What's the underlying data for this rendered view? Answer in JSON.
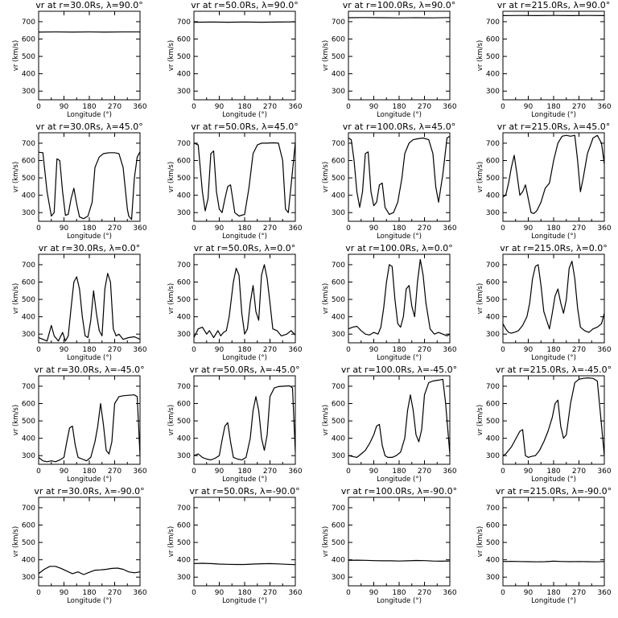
{
  "chart_data": {
    "type": "line",
    "layout": "grid",
    "x_label": "Longitude (°)",
    "y_label": "vr (km/s)",
    "x_ticks": [
      0,
      90,
      180,
      270,
      360
    ],
    "x_range": [
      0,
      360
    ],
    "panels": [
      {
        "title": "vr at r=30.0Rs, λ=90.0°",
        "y_ticks": [
          300,
          400,
          500,
          600,
          700
        ],
        "y_range": [
          250,
          760
        ],
        "x": [
          0,
          60,
          120,
          180,
          240,
          300,
          360
        ],
        "y": [
          640,
          641,
          640,
          641,
          640,
          641,
          641
        ]
      },
      {
        "title": "vr at r=50.0Rs, λ=90.0°",
        "y_ticks": [
          300,
          400,
          500,
          600,
          700
        ],
        "y_range": [
          250,
          760
        ],
        "x": [
          0,
          60,
          120,
          180,
          240,
          300,
          360
        ],
        "y": [
          697,
          698,
          697,
          698,
          697,
          698,
          699
        ]
      },
      {
        "title": "vr at r=100.0Rs, λ=90.0°",
        "y_ticks": [
          300,
          400,
          500,
          600,
          700
        ],
        "y_range": [
          250,
          760
        ],
        "x": [
          0,
          60,
          120,
          180,
          240,
          300,
          360
        ],
        "y": [
          723,
          724,
          723,
          722,
          723,
          722,
          724
        ]
      },
      {
        "title": "vr at r=215.0Rs, λ=90.0°",
        "y_ticks": [
          300,
          400,
          500,
          600,
          700
        ],
        "y_range": [
          250,
          760
        ],
        "x": [
          0,
          60,
          120,
          180,
          240,
          300,
          360
        ],
        "y": [
          735,
          736,
          735,
          736,
          735,
          736,
          735
        ]
      },
      {
        "title": "vr at r=30.0Rs, λ=45.0°",
        "y_ticks": [
          300,
          400,
          500,
          600,
          700
        ],
        "y_range": [
          250,
          760
        ],
        "x": [
          0,
          15,
          30,
          45,
          55,
          65,
          75,
          85,
          95,
          105,
          115,
          125,
          135,
          145,
          160,
          175,
          190,
          200,
          215,
          230,
          250,
          270,
          285,
          300,
          315,
          320,
          330,
          340,
          350,
          360
        ],
        "y": [
          648,
          645,
          420,
          280,
          300,
          610,
          600,
          420,
          285,
          290,
          380,
          440,
          350,
          275,
          265,
          280,
          360,
          560,
          620,
          640,
          645,
          645,
          640,
          560,
          320,
          280,
          260,
          500,
          620,
          650
        ]
      },
      {
        "title": "vr at r=50.0Rs, λ=45.0°",
        "y_ticks": [
          300,
          400,
          500,
          600,
          700
        ],
        "y_range": [
          250,
          760
        ],
        "x": [
          0,
          15,
          30,
          40,
          50,
          60,
          70,
          80,
          90,
          100,
          110,
          120,
          130,
          145,
          160,
          180,
          195,
          210,
          225,
          240,
          260,
          280,
          300,
          315,
          325,
          335,
          345,
          360
        ],
        "y": [
          700,
          690,
          420,
          310,
          380,
          640,
          655,
          420,
          320,
          300,
          380,
          450,
          460,
          300,
          280,
          290,
          440,
          640,
          690,
          700,
          700,
          702,
          700,
          600,
          320,
          300,
          460,
          705
        ]
      },
      {
        "title": "vr at r=100.0Rs, λ=45.0°",
        "y_ticks": [
          300,
          400,
          500,
          600,
          700
        ],
        "y_range": [
          250,
          760
        ],
        "x": [
          0,
          10,
          20,
          30,
          40,
          50,
          60,
          70,
          80,
          90,
          100,
          110,
          120,
          130,
          145,
          160,
          175,
          190,
          200,
          215,
          230,
          245,
          265,
          285,
          300,
          310,
          320,
          335,
          350,
          360
        ],
        "y": [
          730,
          720,
          600,
          420,
          330,
          420,
          640,
          650,
          420,
          340,
          360,
          460,
          470,
          330,
          290,
          300,
          360,
          500,
          640,
          700,
          720,
          725,
          730,
          720,
          640,
          450,
          360,
          520,
          730,
          740
        ]
      },
      {
        "title": "vr at r=215.0Rs, λ=45.0°",
        "y_ticks": [
          300,
          400,
          500,
          600,
          700
        ],
        "y_range": [
          250,
          760
        ],
        "x": [
          0,
          10,
          20,
          30,
          40,
          50,
          60,
          70,
          80,
          90,
          100,
          110,
          120,
          135,
          150,
          165,
          180,
          195,
          210,
          225,
          240,
          255,
          265,
          275,
          285,
          300,
          320,
          335,
          350,
          360
        ],
        "y": [
          390,
          400,
          470,
          560,
          630,
          520,
          400,
          420,
          460,
          380,
          300,
          295,
          310,
          360,
          440,
          470,
          600,
          700,
          740,
          745,
          740,
          745,
          600,
          420,
          500,
          640,
          730,
          745,
          700,
          580
        ]
      },
      {
        "title": "vr at r=30.0Rs, λ=0.0°",
        "y_ticks": [
          300,
          400,
          500,
          600,
          700
        ],
        "y_range": [
          250,
          760
        ],
        "x": [
          0,
          15,
          30,
          45,
          55,
          70,
          85,
          95,
          105,
          115,
          125,
          135,
          145,
          155,
          165,
          175,
          185,
          195,
          205,
          215,
          225,
          235,
          245,
          255,
          265,
          275,
          285,
          300,
          320,
          340,
          360
        ],
        "y": [
          280,
          270,
          260,
          350,
          290,
          260,
          310,
          260,
          290,
          450,
          600,
          630,
          560,
          400,
          290,
          280,
          380,
          550,
          420,
          320,
          290,
          560,
          650,
          600,
          330,
          290,
          300,
          270,
          280,
          285,
          270
        ]
      },
      {
        "title": "vr at r=50.0Rs, λ=0.0°",
        "y_ticks": [
          300,
          400,
          500,
          600,
          700
        ],
        "y_range": [
          250,
          760
        ],
        "x": [
          0,
          15,
          30,
          45,
          55,
          70,
          85,
          95,
          105,
          115,
          125,
          140,
          150,
          160,
          170,
          180,
          190,
          200,
          210,
          220,
          230,
          240,
          250,
          260,
          270,
          280,
          295,
          310,
          330,
          345,
          360
        ],
        "y": [
          280,
          330,
          340,
          300,
          320,
          280,
          320,
          290,
          310,
          320,
          400,
          600,
          680,
          640,
          420,
          300,
          330,
          480,
          580,
          430,
          380,
          640,
          700,
          620,
          480,
          330,
          320,
          290,
          300,
          320,
          295
        ]
      },
      {
        "title": "vr at r=100.0Rs, λ=0.0°",
        "y_ticks": [
          300,
          400,
          500,
          600,
          700
        ],
        "y_range": [
          250,
          760
        ],
        "x": [
          0,
          15,
          30,
          45,
          60,
          75,
          90,
          105,
          115,
          125,
          135,
          145,
          155,
          165,
          175,
          185,
          195,
          205,
          215,
          225,
          235,
          245,
          255,
          265,
          275,
          290,
          305,
          320,
          335,
          350,
          360
        ],
        "y": [
          330,
          340,
          345,
          320,
          300,
          295,
          310,
          300,
          340,
          450,
          600,
          700,
          690,
          500,
          360,
          340,
          400,
          560,
          580,
          460,
          400,
          600,
          730,
          640,
          480,
          330,
          300,
          310,
          300,
          290,
          300
        ]
      },
      {
        "title": "vr at r=215.0Rs, λ=0.0°",
        "y_ticks": [
          300,
          400,
          500,
          600,
          700
        ],
        "y_range": [
          250,
          760
        ],
        "x": [
          0,
          10,
          20,
          30,
          40,
          55,
          70,
          85,
          95,
          105,
          115,
          125,
          135,
          145,
          155,
          165,
          175,
          185,
          195,
          205,
          215,
          225,
          235,
          245,
          255,
          265,
          275,
          290,
          305,
          320,
          335,
          350,
          360
        ],
        "y": [
          360,
          330,
          310,
          305,
          310,
          320,
          350,
          400,
          480,
          620,
          690,
          700,
          580,
          430,
          380,
          330,
          420,
          520,
          560,
          480,
          420,
          500,
          680,
          720,
          620,
          450,
          340,
          320,
          310,
          330,
          340,
          360,
          420
        ]
      },
      {
        "title": "vr at r=30.0Rs, λ=-45.0°",
        "y_ticks": [
          300,
          400,
          500,
          600,
          700
        ],
        "y_range": [
          250,
          760
        ],
        "x": [
          0,
          15,
          30,
          45,
          60,
          75,
          90,
          100,
          110,
          120,
          130,
          140,
          155,
          170,
          185,
          200,
          210,
          220,
          230,
          240,
          250,
          260,
          270,
          285,
          300,
          320,
          340,
          350,
          360
        ],
        "y": [
          290,
          270,
          265,
          270,
          265,
          275,
          290,
          380,
          460,
          470,
          360,
          290,
          280,
          270,
          290,
          380,
          470,
          600,
          480,
          330,
          310,
          380,
          600,
          640,
          645,
          648,
          650,
          640,
          300
        ]
      },
      {
        "title": "vr at r=50.0Rs, λ=-45.0°",
        "y_ticks": [
          300,
          400,
          500,
          600,
          700
        ],
        "y_range": [
          250,
          760
        ],
        "x": [
          0,
          15,
          30,
          45,
          60,
          75,
          90,
          100,
          110,
          120,
          130,
          140,
          155,
          170,
          185,
          200,
          210,
          220,
          230,
          240,
          250,
          260,
          270,
          285,
          300,
          320,
          340,
          350,
          360
        ],
        "y": [
          300,
          310,
          290,
          280,
          275,
          285,
          300,
          390,
          470,
          490,
          380,
          290,
          280,
          275,
          290,
          400,
          560,
          640,
          560,
          400,
          330,
          420,
          640,
          690,
          698,
          700,
          702,
          690,
          320
        ]
      },
      {
        "title": "vr at r=100.0Rs, λ=-45.0°",
        "y_ticks": [
          300,
          400,
          500,
          600,
          700
        ],
        "y_range": [
          250,
          760
        ],
        "x": [
          0,
          15,
          30,
          45,
          60,
          75,
          90,
          100,
          110,
          120,
          130,
          140,
          155,
          170,
          185,
          200,
          210,
          220,
          230,
          240,
          250,
          260,
          270,
          285,
          300,
          320,
          335,
          345,
          360
        ],
        "y": [
          300,
          295,
          290,
          310,
          330,
          370,
          420,
          470,
          480,
          360,
          300,
          290,
          290,
          300,
          320,
          400,
          560,
          650,
          560,
          420,
          380,
          450,
          650,
          720,
          730,
          735,
          740,
          600,
          310
        ]
      },
      {
        "title": "vr at r=215.0Rs, λ=-45.0°",
        "y_ticks": [
          300,
          400,
          500,
          600,
          700
        ],
        "y_range": [
          250,
          760
        ],
        "x": [
          0,
          10,
          20,
          30,
          40,
          50,
          60,
          70,
          80,
          90,
          100,
          115,
          130,
          145,
          160,
          175,
          185,
          195,
          205,
          215,
          225,
          240,
          255,
          270,
          285,
          300,
          320,
          335,
          345,
          360
        ],
        "y": [
          300,
          310,
          330,
          350,
          380,
          410,
          440,
          450,
          300,
          290,
          295,
          300,
          330,
          380,
          440,
          520,
          600,
          620,
          470,
          400,
          420,
          600,
          720,
          740,
          745,
          748,
          745,
          730,
          560,
          300
        ]
      },
      {
        "title": "vr at r=30.0Rs, λ=-90.0°",
        "y_ticks": [
          300,
          400,
          500,
          600,
          700
        ],
        "y_range": [
          250,
          760
        ],
        "x": [
          0,
          20,
          40,
          60,
          80,
          100,
          120,
          140,
          160,
          180,
          200,
          220,
          240,
          260,
          280,
          300,
          320,
          340,
          360
        ],
        "y": [
          320,
          345,
          362,
          362,
          350,
          335,
          320,
          330,
          315,
          328,
          340,
          342,
          345,
          350,
          352,
          345,
          330,
          325,
          330
        ]
      },
      {
        "title": "vr at r=50.0Rs, λ=-90.0°",
        "y_ticks": [
          300,
          400,
          500,
          600,
          700
        ],
        "y_range": [
          250,
          760
        ],
        "x": [
          0,
          30,
          60,
          90,
          120,
          150,
          180,
          210,
          240,
          270,
          300,
          330,
          360
        ],
        "y": [
          378,
          380,
          378,
          375,
          374,
          373,
          373,
          375,
          377,
          378,
          376,
          374,
          372
        ]
      },
      {
        "title": "vr at r=100.0Rs, λ=-90.0°",
        "y_ticks": [
          300,
          400,
          500,
          600,
          700
        ],
        "y_range": [
          250,
          760
        ],
        "x": [
          0,
          30,
          60,
          90,
          120,
          150,
          180,
          210,
          240,
          270,
          300,
          330,
          360
        ],
        "y": [
          397,
          398,
          397,
          395,
          394,
          394,
          393,
          394,
          396,
          395,
          393,
          392,
          393
        ]
      },
      {
        "title": "vr at r=215.0Rs, λ=-90.0°",
        "y_ticks": [
          300,
          400,
          500,
          600,
          700
        ],
        "y_range": [
          250,
          760
        ],
        "x": [
          0,
          30,
          60,
          90,
          120,
          150,
          180,
          210,
          240,
          270,
          300,
          330,
          360
        ],
        "y": [
          390,
          391,
          390,
          389,
          388,
          389,
          392,
          390,
          389,
          390,
          389,
          388,
          390
        ]
      }
    ]
  }
}
